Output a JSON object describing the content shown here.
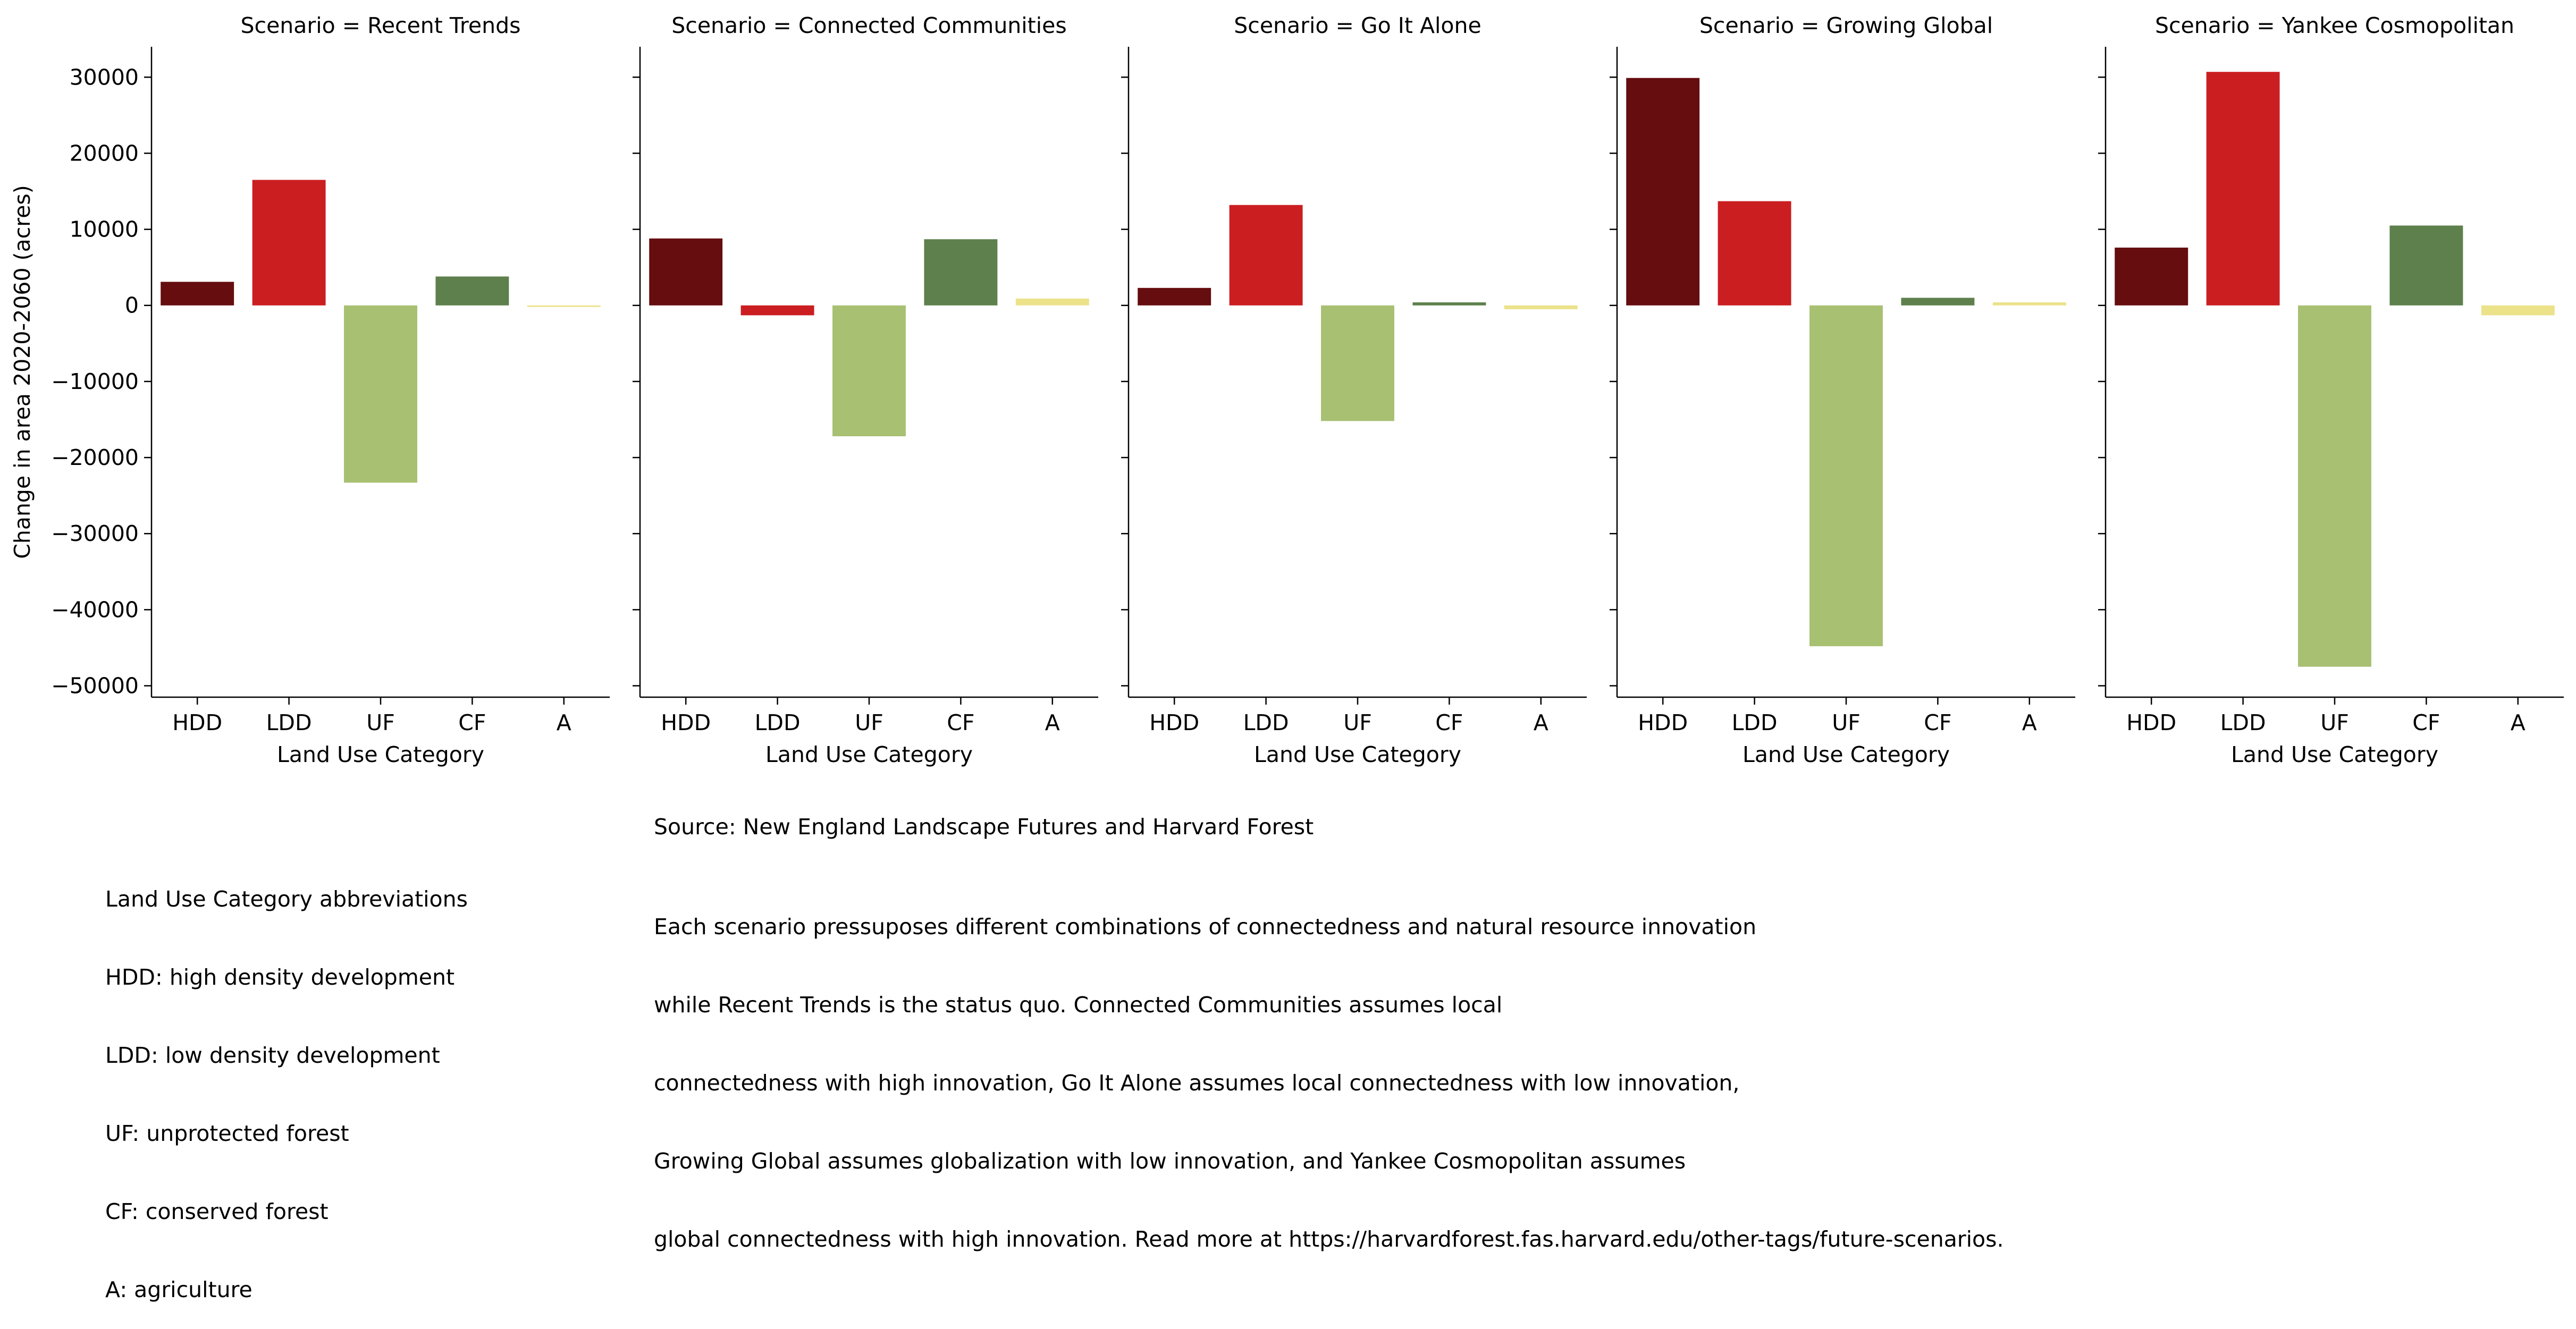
{
  "chart_data": {
    "type": "bar",
    "facet_label_prefix": "Scenario = ",
    "categories": [
      "HDD",
      "LDD",
      "UF",
      "CF",
      "A"
    ],
    "category_colors": [
      "#650d0f",
      "#cb1e21",
      "#a8c072",
      "#5e804c",
      "#ebe28a"
    ],
    "ylabel": "Change in area 2020-2060 (acres)",
    "xlabel": "Land Use Category",
    "ylim": [
      -51500,
      34000
    ],
    "yticks": [
      30000,
      20000,
      10000,
      0,
      -10000,
      -20000,
      -30000,
      -40000,
      -50000
    ],
    "ytick_labels": [
      "30000",
      "20000",
      "10000",
      "0",
      "−10000",
      "−20000",
      "−30000",
      "−40000",
      "−50000"
    ],
    "panels": [
      {
        "scenario": "Recent Trends",
        "values": [
          3100,
          16500,
          -23300,
          3800,
          -200
        ]
      },
      {
        "scenario": "Connected Communities",
        "values": [
          8800,
          -1300,
          -17200,
          8700,
          900
        ]
      },
      {
        "scenario": "Go It Alone",
        "values": [
          2300,
          13200,
          -15200,
          400,
          -500
        ]
      },
      {
        "scenario": "Growing Global",
        "values": [
          29900,
          13700,
          -44800,
          1000,
          400
        ]
      },
      {
        "scenario": "Yankee Cosmopolitan",
        "values": [
          7600,
          30700,
          -47500,
          10500,
          -1300
        ]
      }
    ]
  },
  "notes": {
    "legend": [
      "Land Use Category abbreviations",
      "HDD: high density development",
      "LDD: low density development",
      "UF: unprotected forest",
      "CF: conserved forest",
      "A: agriculture"
    ],
    "source": "Source: New England Landscape Futures and Harvard Forest",
    "description": [
      "Each scenario pressuposes different combinations of connectedness and natural resource innovation",
      "while Recent Trends is the status quo. Connected Communities assumes local",
      "connectedness with high innovation, Go It Alone assumes local connectedness with low innovation,",
      "Growing Global assumes globalization with low innovation, and Yankee Cosmopolitan assumes",
      "global connectedness with high innovation. Read more at https://harvardforest.fas.harvard.edu/other-tags/future-scenarios."
    ]
  }
}
